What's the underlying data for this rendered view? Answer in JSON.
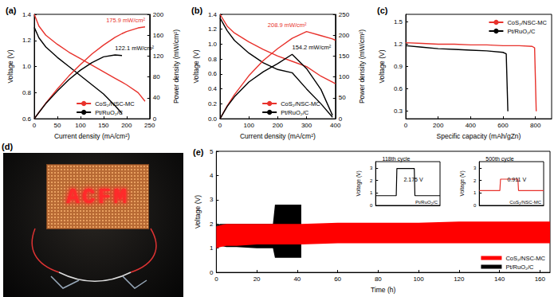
{
  "chart_data": [
    {
      "type": "line",
      "title": "(a)",
      "xlabel": "Current density (mA/cm²)",
      "ylabel": "Voltage (V)",
      "y2label": "Power density (mW/cm²)",
      "x": [
        0,
        10,
        25,
        50,
        75,
        100,
        125,
        150,
        175,
        190,
        200,
        225,
        240
      ],
      "xlim": [
        0,
        250
      ],
      "xticks": [
        0,
        50,
        100,
        150,
        200,
        250
      ],
      "ylim": [
        0.6,
        1.4
      ],
      "yticks": [
        0.6,
        0.8,
        {
          "value": 1,
          "label": "1.0"
        },
        1.2,
        1.4
      ],
      "y2lim": [
        0,
        200
      ],
      "y2ticks": [
        0,
        40,
        80,
        120,
        160,
        200
      ],
      "legend": "bottom",
      "series": [
        {
          "name": "CoS₂/NSC-MC",
          "color": "#e8322c",
          "values": [
            1.4,
            1.31,
            1.24,
            1.17,
            1.11,
            1.06,
            1.01,
            0.96,
            0.91,
            0.88,
            0.86,
            0.8,
            0.733
          ]
        },
        {
          "name": "Pt/RuO₂/C",
          "color": "#000000",
          "values": [
            1.3,
            1.22,
            1.15,
            1.07,
            1.0,
            0.93,
            0.86,
            0.79,
            0.7,
            0.64,
            null,
            null,
            null
          ]
        },
        {
          "name": "CoS₂/NSC-MC",
          "color": "#e8322c",
          "axis": "y2",
          "annotation": "175.9 mW/cm²",
          "values": [
            0,
            12,
            30,
            57,
            82,
            104,
            124,
            141,
            156,
            163,
            167,
            174,
            175.9
          ]
        },
        {
          "name": "Pt/RuO₂/C",
          "color": "#000000",
          "axis": "y2",
          "annotation": "122.1 mW/cm²",
          "values": [
            0,
            12,
            29,
            53,
            75,
            93,
            107.5,
            118.5,
            122.1,
            121,
            null,
            null,
            null
          ]
        }
      ]
    },
    {
      "type": "line",
      "title": "(b)",
      "xlabel": "Current density (mA/cm²)",
      "ylabel": "Voltage (V)",
      "y2label": "Power density (mW/cm²)",
      "x": [
        0,
        25,
        50,
        100,
        150,
        200,
        250,
        300,
        350,
        390,
        400
      ],
      "xlim": [
        0,
        400
      ],
      "xticks": [
        0,
        100,
        200,
        300,
        400
      ],
      "ylim": [
        0,
        1.4
      ],
      "yticks": [
        {
          "value": 0,
          "label": "0.0"
        },
        0.2,
        0.4,
        0.6,
        0.8,
        {
          "value": 1,
          "label": "1.0"
        },
        1.2,
        1.4
      ],
      "y2lim": [
        0,
        250
      ],
      "y2ticks": [
        0,
        50,
        100,
        150,
        200,
        250
      ],
      "legend": "bottom",
      "series": [
        {
          "name": "CoS₂/NSC-MC",
          "color": "#e8322c",
          "values": [
            1.4,
            1.24,
            1.15,
            1.03,
            0.93,
            0.84,
            0.77,
            0.7,
            0.57,
            0.49,
            0.47
          ]
        },
        {
          "name": "Pt/RuO₂/C",
          "color": "#000000",
          "values": [
            1.35,
            1.18,
            1.05,
            0.88,
            0.75,
            0.66,
            0.617,
            0.4,
            0.2,
            0.02,
            null
          ]
        },
        {
          "name": "CoS₂/NSC-MC",
          "color": "#e8322c",
          "axis": "y2",
          "annotation": "208.9 mW/cm²",
          "values": [
            0,
            31,
            57.5,
            103,
            139.5,
            168,
            192.5,
            208.9,
            199,
            191,
            188
          ]
        },
        {
          "name": "Pt/RuO₂/C",
          "color": "#000000",
          "axis": "y2",
          "annotation": "154.2 mW/cm²",
          "values": [
            0,
            29.5,
            52.5,
            88,
            112.5,
            132,
            154.2,
            120,
            70,
            8,
            null
          ]
        }
      ]
    },
    {
      "type": "line",
      "title": "(c)",
      "xlabel": "Specific capacity (mAh/gZn)",
      "ylabel": "Voltage (V)",
      "x": [
        0,
        100,
        200,
        300,
        400,
        500,
        600,
        620,
        630,
        640,
        700,
        780,
        795,
        805
      ],
      "xlim": [
        0,
        900
      ],
      "xticks": [
        0,
        200,
        400,
        600,
        800
      ],
      "ylim": [
        0.2,
        1.6
      ],
      "yticks": [
        0.3,
        0.6,
        0.9,
        1.2,
        1.5
      ],
      "legend": "top right",
      "series": [
        {
          "name": "CoS₂/NSC-MC",
          "color": "#e8322c",
          "values": [
            1.22,
            1.21,
            1.2,
            1.2,
            1.19,
            1.19,
            1.18,
            1.18,
            1.18,
            1.18,
            1.18,
            1.17,
            1.15,
            0.3
          ]
        },
        {
          "name": "Pt/RuO₂/C",
          "color": "#000000",
          "values": [
            1.18,
            1.16,
            1.14,
            1.13,
            1.12,
            1.11,
            1.09,
            1.07,
            0.3,
            null,
            null,
            null,
            null,
            null
          ]
        }
      ]
    },
    {
      "type": "photo",
      "title": "(d)",
      "text": "ACFM",
      "color": "#ff2a2a"
    },
    {
      "type": "band",
      "title": "(e)",
      "xlabel": "Time (h)",
      "ylabel": "Voltage (V)",
      "x": [
        0,
        2,
        5,
        10,
        20,
        28,
        29,
        35,
        42,
        60,
        80,
        100,
        120,
        140,
        165
      ],
      "xlim": [
        0,
        165
      ],
      "xticks": [
        0,
        20,
        40,
        60,
        80,
        100,
        120,
        140,
        160
      ],
      "ylim": [
        0,
        5
      ],
      "yticks": [
        0,
        1,
        2,
        3,
        4,
        5
      ],
      "legend": "bottom right",
      "series": [
        {
          "name": "CoS₂/NSC-MC",
          "color": "#ff0000",
          "low": [
            1.0,
            1.05,
            1.1,
            1.1,
            1.15,
            1.15,
            1.15,
            1.15,
            1.15,
            1.2,
            1.2,
            1.2,
            1.2,
            1.2,
            1.2
          ],
          "high": [
            1.9,
            1.95,
            2.0,
            2.0,
            2.0,
            2.0,
            2.0,
            2.0,
            2.0,
            2.05,
            2.05,
            2.05,
            2.1,
            2.1,
            2.1
          ]
        },
        {
          "name": "Pt/RuO₂/C",
          "color": "#000000",
          "low": [
            1.1,
            1.1,
            1.05,
            1.05,
            1.0,
            1.0,
            0.6,
            0.6,
            0.6,
            null,
            null,
            null,
            null,
            null,
            null
          ],
          "high": [
            1.95,
            2.0,
            2.0,
            2.0,
            2.0,
            2.0,
            2.8,
            2.8,
            2.8,
            null,
            null,
            null,
            null,
            null,
            null
          ]
        }
      ]
    },
    {
      "type": "line",
      "title": "118th cycle",
      "ylabel": "Voltage (V)",
      "annotation": "2.175 V",
      "tick_labels": "y",
      "x": [
        0,
        1,
        1.6,
        1.65,
        3.0,
        3.05,
        5
      ],
      "xlim": [
        0,
        5
      ],
      "ylim": [
        0,
        3.5
      ],
      "yticks": [
        0,
        1,
        2,
        3
      ],
      "series": [
        {
          "name": "Pt/RuO₂/C",
          "color": "#000000",
          "values": [
            0.78,
            0.78,
            0.78,
            2.955,
            2.955,
            0.78,
            0.78
          ]
        }
      ]
    },
    {
      "type": "line",
      "title": "500th cycle",
      "ylabel": "Voltage (V)",
      "annotation": "0.911 V",
      "tick_labels": "y",
      "x": [
        0,
        1,
        1.6,
        1.65,
        3.0,
        3.05,
        5
      ],
      "xlim": [
        0,
        5
      ],
      "ylim": [
        0,
        3.5
      ],
      "yticks": [
        0,
        1,
        2,
        3
      ],
      "series": [
        {
          "name": "CoS₂/NSC-MC",
          "color": "#e8322c",
          "values": [
            1.19,
            1.19,
            1.19,
            2.101,
            2.101,
            1.19,
            1.19
          ]
        }
      ]
    }
  ]
}
